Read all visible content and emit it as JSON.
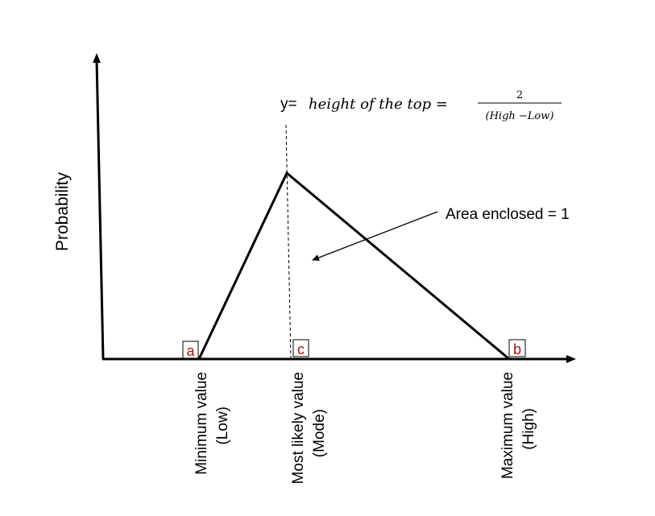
{
  "colors": {
    "stroke": "#000000",
    "point_label": "#b01010",
    "background": "#ffffff"
  },
  "y_axis_label": "Probability",
  "formula": {
    "lhs": "y=",
    "expression": "height of the top =",
    "numerator": "2",
    "denominator": "(High −Low)"
  },
  "area_annotation": "Area enclosed = 1",
  "points": {
    "a": "a",
    "c": "c",
    "b": "b"
  },
  "x_labels": {
    "min": {
      "line1": "Minimum value",
      "line2": "(Low)"
    },
    "mode": {
      "line1": "Most likely value",
      "line2": "(Mode)"
    },
    "max": {
      "line1": "Maximum value",
      "line2": "(High)"
    }
  }
}
